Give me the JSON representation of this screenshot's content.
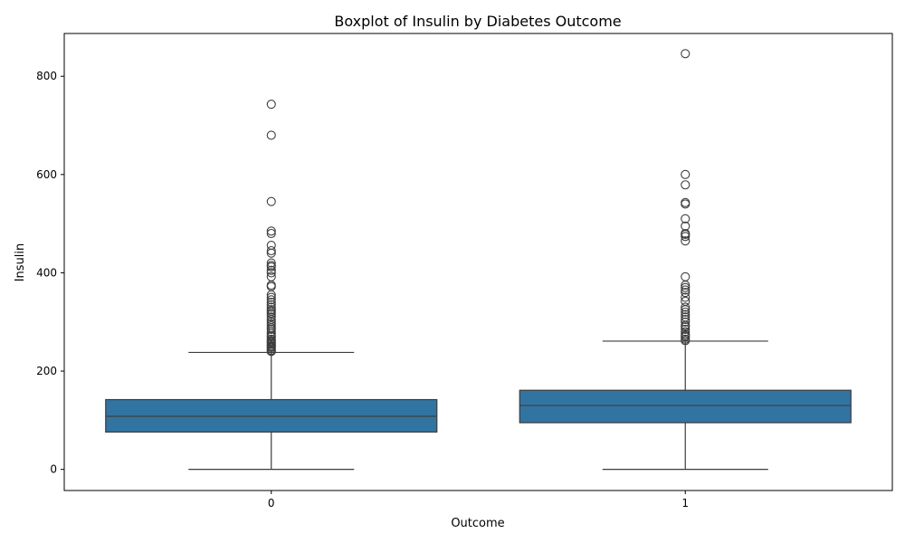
{
  "chart_data": {
    "type": "boxplot",
    "title": "Boxplot of Insulin by Diabetes Outcome",
    "xlabel": "Outcome",
    "ylabel": "Insulin",
    "categories": [
      "0",
      "1"
    ],
    "ylim": [
      -43,
      887
    ],
    "yticks": [
      0,
      200,
      400,
      600,
      800
    ],
    "grid": false,
    "legend": "none",
    "colors": {
      "box": "#3274a1",
      "line": "#3d3d3d"
    },
    "boxes": [
      {
        "category": "0",
        "whisker_low": 0,
        "q1": 76,
        "median": 108,
        "q3": 142,
        "whisker_high": 238,
        "outliers": [
          743,
          680,
          545,
          485,
          480,
          456,
          445,
          440,
          420,
          415,
          412,
          405,
          400,
          392,
          375,
          372,
          355,
          350,
          345,
          340,
          335,
          330,
          325,
          322,
          318,
          315,
          310,
          305,
          300,
          296,
          292,
          288,
          285,
          280,
          276,
          272,
          270,
          265,
          262,
          260,
          258,
          255,
          252,
          250,
          248,
          245,
          242,
          240
        ]
      },
      {
        "category": "1",
        "whisker_low": 0,
        "q1": 95,
        "median": 130,
        "q3": 161,
        "whisker_high": 261,
        "outliers": [
          846,
          600,
          579,
          543,
          540,
          510,
          495,
          480,
          478,
          474,
          465,
          392,
          375,
          370,
          365,
          360,
          350,
          342,
          330,
          325,
          320,
          315,
          310,
          305,
          300,
          293,
          290,
          285,
          280,
          275,
          272,
          270,
          265,
          262
        ]
      }
    ]
  }
}
